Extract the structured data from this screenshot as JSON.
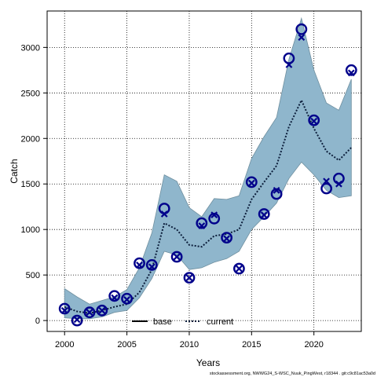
{
  "chart_data": {
    "type": "line",
    "xlabel": "Years",
    "ylabel": "Catch",
    "xlim": [
      1998.6,
      2023.8
    ],
    "ylim": [
      -120,
      3400
    ],
    "x_ticks": [
      2000,
      2005,
      2010,
      2015,
      2020
    ],
    "y_ticks": [
      0,
      500,
      1000,
      1500,
      2000,
      2500,
      3000
    ],
    "grid": true,
    "legend_position": "bottom-center",
    "colors": {
      "band": "#8fb6cc",
      "band_edge": "#6f8f9f",
      "trend": "#0d1f3c",
      "markers": "#00008b",
      "grid": "#000000"
    },
    "band": {
      "x": [
        2000,
        2001,
        2002,
        2003,
        2004,
        2005,
        2006,
        2007,
        2008,
        2009,
        2010,
        2011,
        2012,
        2013,
        2014,
        2015,
        2016,
        2017,
        2018,
        2019,
        2020,
        2021,
        2022,
        2023
      ],
      "lower": [
        30,
        20,
        20,
        40,
        90,
        110,
        250,
        460,
        760,
        720,
        560,
        580,
        640,
        680,
        760,
        1000,
        1140,
        1290,
        1560,
        1740,
        1600,
        1430,
        1350,
        1370
      ],
      "upper": [
        350,
        260,
        180,
        220,
        260,
        340,
        580,
        960,
        1600,
        1530,
        1240,
        1140,
        1340,
        1330,
        1370,
        1780,
        2020,
        2230,
        2870,
        3320,
        2750,
        2390,
        2310,
        2650
      ]
    },
    "series": [
      {
        "name": "current",
        "style": "dotted",
        "x": [
          2000,
          2001,
          2002,
          2003,
          2004,
          2005,
          2006,
          2007,
          2008,
          2009,
          2010,
          2011,
          2012,
          2013,
          2014,
          2015,
          2016,
          2017,
          2018,
          2019,
          2020,
          2021,
          2022,
          2023
        ],
        "y": [
          150,
          100,
          80,
          110,
          150,
          180,
          310,
          560,
          1070,
          1000,
          830,
          810,
          930,
          950,
          1000,
          1330,
          1520,
          1700,
          2130,
          2420,
          2110,
          1860,
          1760,
          1900
        ]
      },
      {
        "name": "base",
        "style": "solid",
        "x": [],
        "y": []
      }
    ],
    "observed": {
      "x": [
        2000,
        2001,
        2002,
        2003,
        2004,
        2005,
        2006,
        2007,
        2008,
        2009,
        2010,
        2011,
        2012,
        2013,
        2014,
        2015,
        2016,
        2017,
        2018,
        2019,
        2020,
        2021,
        2022,
        2023
      ],
      "y": [
        130,
        0,
        90,
        110,
        270,
        240,
        630,
        610,
        1230,
        700,
        470,
        1070,
        1120,
        910,
        570,
        1520,
        1170,
        1390,
        2880,
        3200,
        2200,
        1450,
        1560,
        2750
      ]
    },
    "predicted": {
      "x": [
        2000,
        2001,
        2002,
        2003,
        2004,
        2005,
        2006,
        2007,
        2008,
        2009,
        2010,
        2011,
        2012,
        2013,
        2014,
        2015,
        2016,
        2017,
        2018,
        2019,
        2020,
        2021,
        2022,
        2023
      ],
      "y": [
        110,
        10,
        90,
        110,
        250,
        230,
        610,
        590,
        1170,
        700,
        470,
        1040,
        1160,
        900,
        570,
        1510,
        1160,
        1430,
        2810,
        3110,
        2190,
        1530,
        1500,
        2720
      ]
    },
    "legend": [
      "base",
      "current"
    ],
    "footer": "stockassessment.org, NWWG24_S-WSC_Nuuk_PingWest, r18344 . git:c9c81ac53a0d"
  }
}
